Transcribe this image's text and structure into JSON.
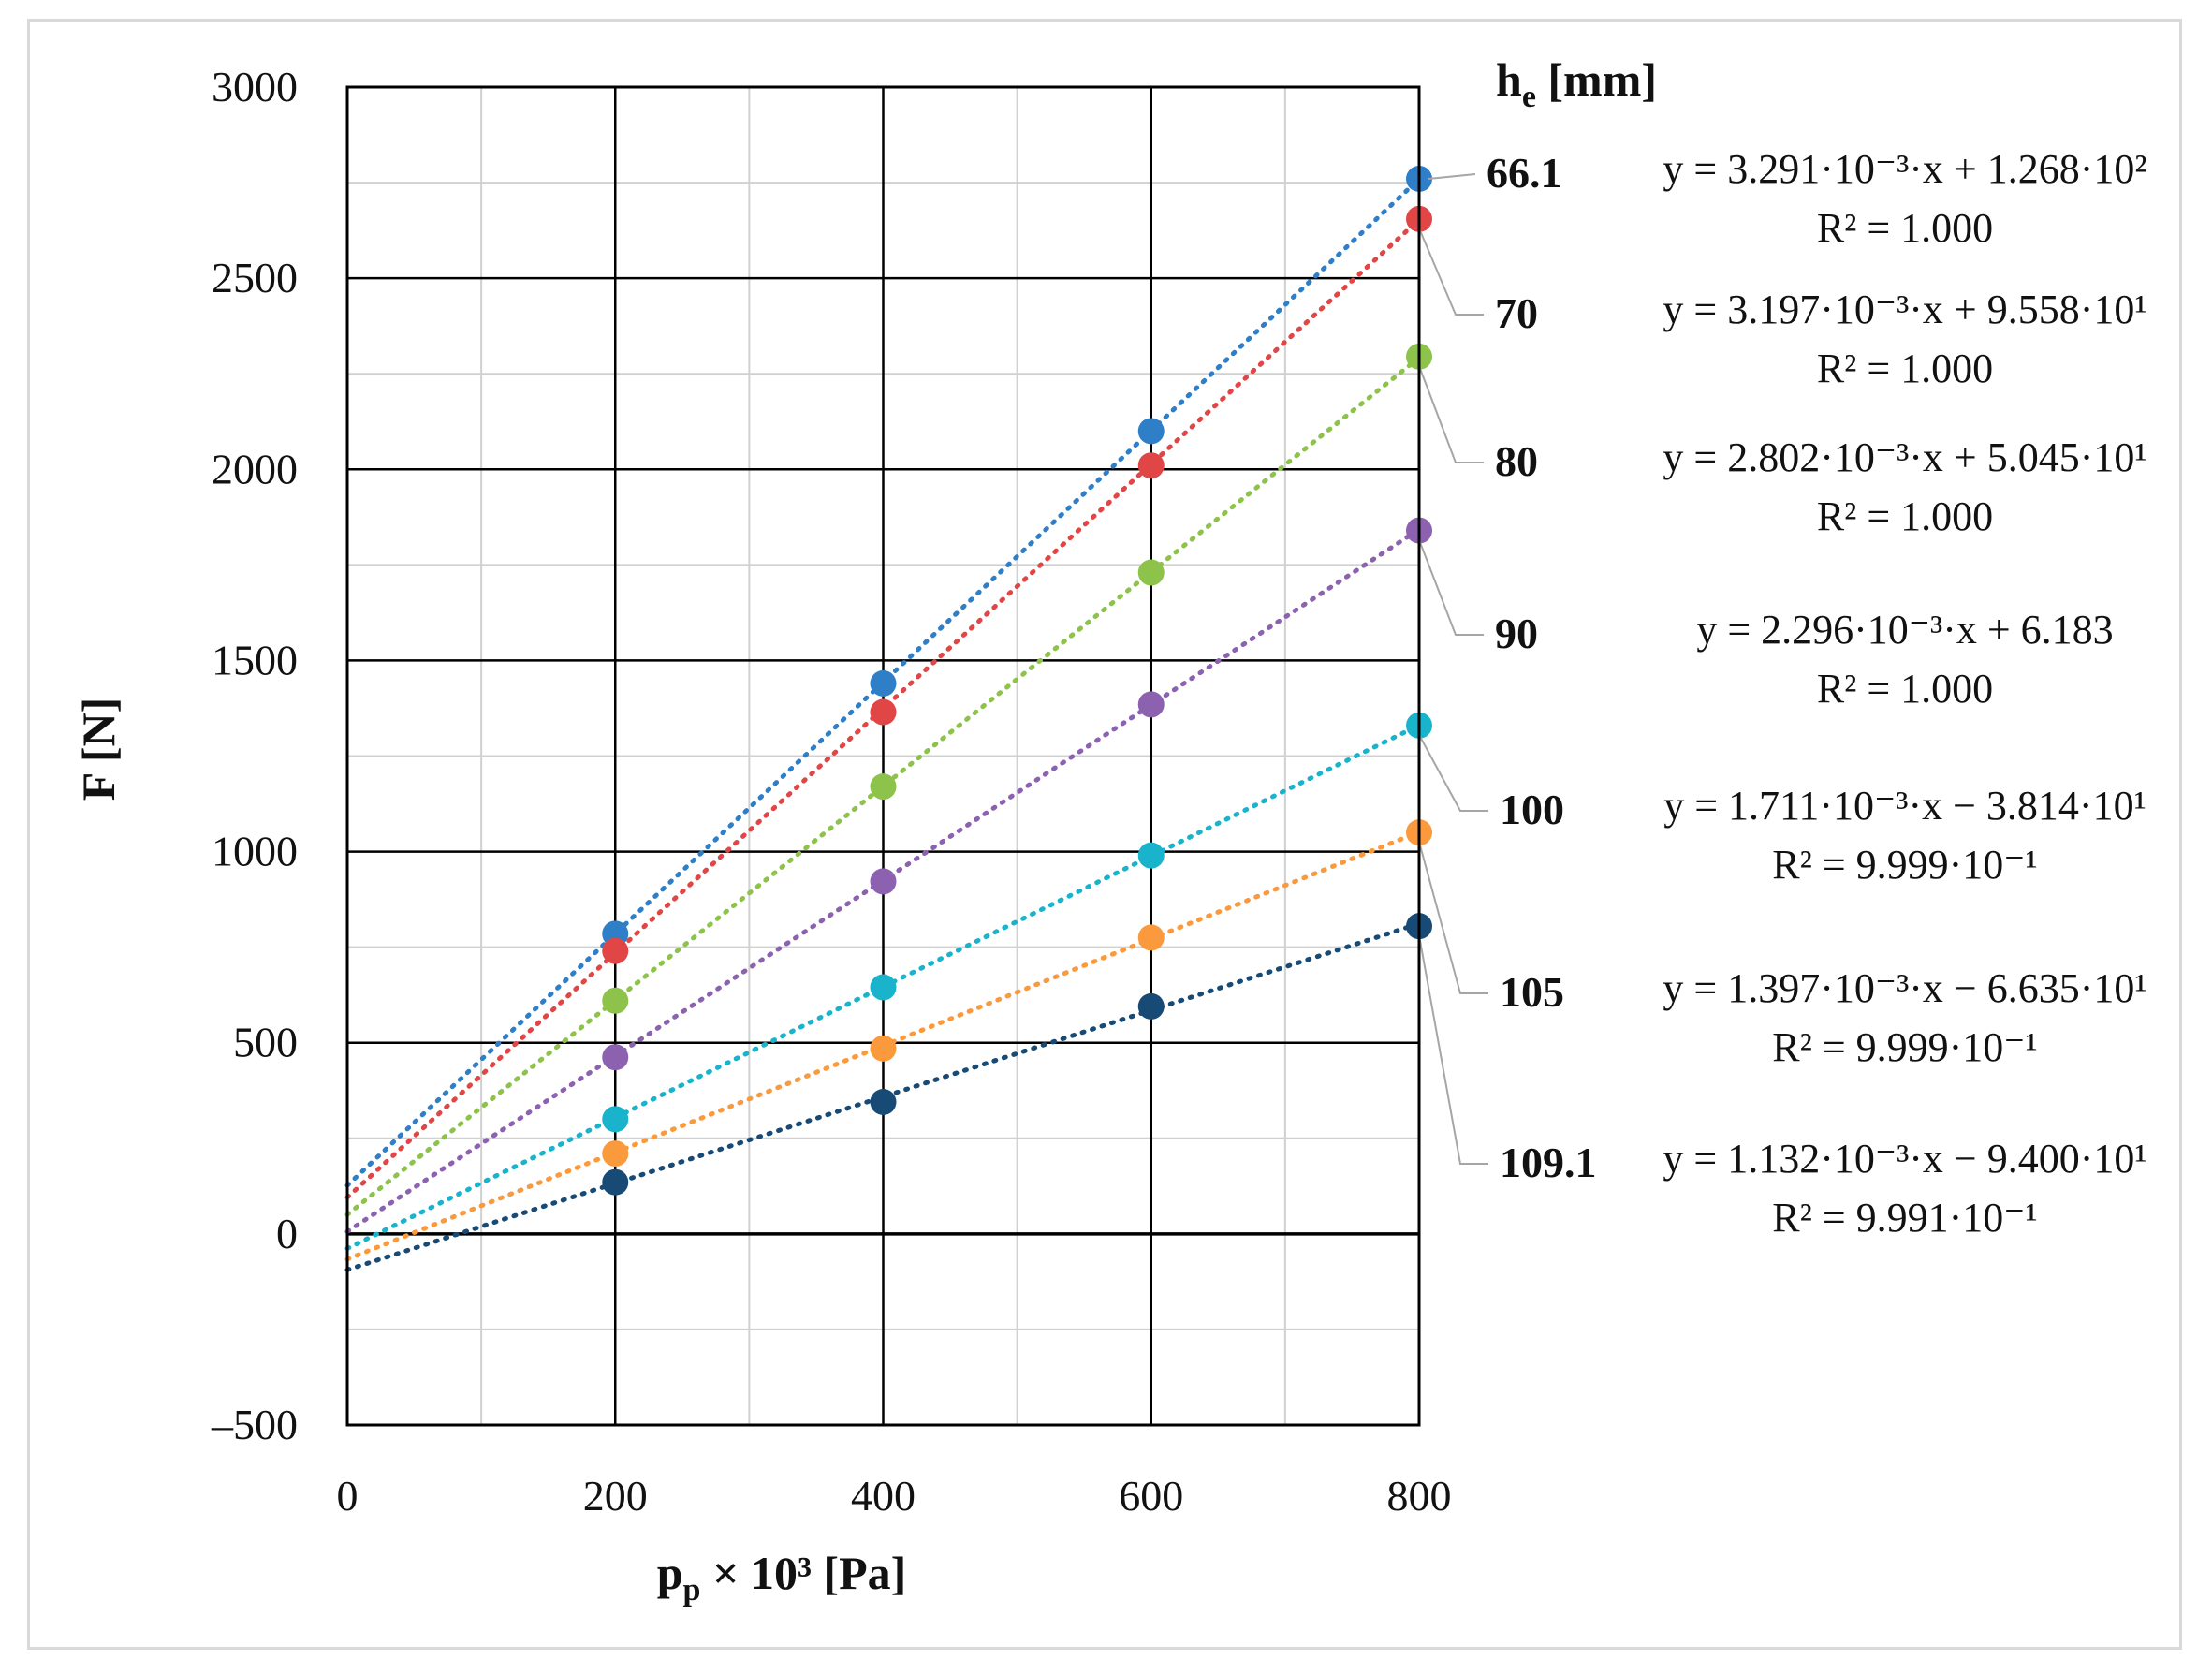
{
  "chart_data": {
    "type": "scatter",
    "title": "",
    "xlabel": "p",
    "xlabel_sub": "p",
    "xlabel_rest": " × 10³ [Pa]",
    "ylabel": "F [N]",
    "legend_title": "h",
    "legend_title_sub": "e",
    "legend_title_rest": " [mm]",
    "xlim": [
      0,
      800
    ],
    "ylim": [
      -500,
      3000
    ],
    "x_major_ticks": [
      0,
      200,
      400,
      600,
      800
    ],
    "x_tick_labels": [
      "0",
      "200",
      "400",
      "600",
      "800"
    ],
    "x_minor_gridlines": [
      100,
      300,
      500,
      700
    ],
    "y_major_ticks": [
      -500,
      0,
      500,
      1000,
      1500,
      2000,
      2500,
      3000
    ],
    "y_tick_labels": [
      "–500",
      "0",
      "500",
      "1000",
      "1500",
      "2000",
      "2500",
      "3000"
    ],
    "y_minor_gridlines": [
      -250,
      250,
      750,
      1250,
      1750,
      2250,
      2750
    ],
    "grid": true,
    "trendline_style": "dotted",
    "x": [
      200,
      400,
      600,
      800
    ],
    "series": [
      {
        "name": "66.1",
        "color": "#2e7ec8",
        "values": [
          785,
          1440,
          2100,
          2760
        ],
        "slope": 3.291,
        "intercept": 126.8,
        "equation": "y = 3.291·10⁻³·x + 1.268·10²",
        "r2": "R² = 1.000"
      },
      {
        "name": "70",
        "color": "#e04646",
        "values": [
          740,
          1365,
          2010,
          2655
        ],
        "slope": 3.197,
        "intercept": 95.58,
        "equation": "y = 3.197·10⁻³·x + 9.558·10¹",
        "r2": "R² = 1.000"
      },
      {
        "name": "80",
        "color": "#8dc24b",
        "values": [
          610,
          1170,
          1730,
          2295
        ],
        "slope": 2.802,
        "intercept": 50.45,
        "equation": "y = 2.802·10⁻³·x + 5.045·10¹",
        "r2": "R² = 1.000"
      },
      {
        "name": "90",
        "color": "#8c62b0",
        "values": [
          462,
          922,
          1385,
          1840
        ],
        "slope": 2.296,
        "intercept": 6.183,
        "equation": "y = 2.296·10⁻³·x + 6.183",
        "r2": "R² = 1.000"
      },
      {
        "name": "100",
        "color": "#19b3cc",
        "values": [
          300,
          645,
          990,
          1330
        ],
        "slope": 1.711,
        "intercept": -38.14,
        "equation": "y = 1.711·10⁻³·x − 3.814·10¹",
        "r2": "R² = 9.999·10⁻¹"
      },
      {
        "name": "105",
        "color": "#fb9a3c",
        "values": [
          210,
          485,
          775,
          1050
        ],
        "slope": 1.397,
        "intercept": -66.35,
        "equation": "y = 1.397·10⁻³·x − 6.635·10¹",
        "r2": "R² = 9.999·10⁻¹"
      },
      {
        "name": "109.1",
        "color": "#174a75",
        "values": [
          135,
          345,
          595,
          805
        ],
        "slope": 1.132,
        "intercept": -94.0,
        "equation": "y = 1.132·10⁻³·x − 9.400·10¹",
        "r2": "R² = 9.991·10⁻¹"
      }
    ]
  }
}
